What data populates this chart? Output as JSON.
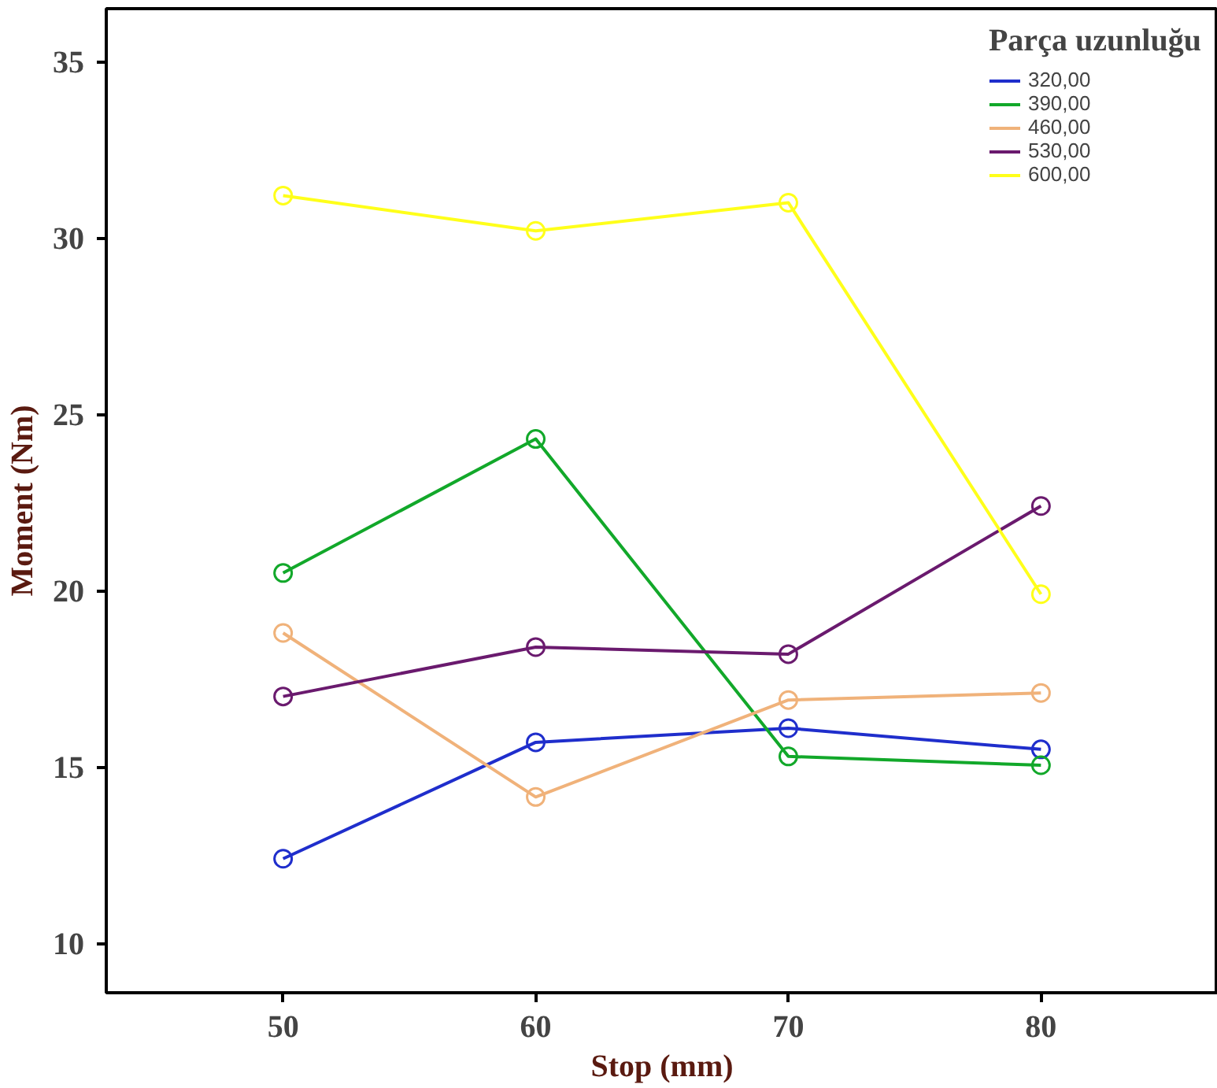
{
  "chart_data": {
    "type": "line",
    "xlabel": "Stop (mm)",
    "ylabel": "Moment (Nm)",
    "legend_title": "Parça uzunluğu",
    "x": [
      50,
      60,
      70,
      80
    ],
    "xlim": [
      43,
      87
    ],
    "xticks": [
      50,
      60,
      70,
      80
    ],
    "ylim": [
      8.6,
      36.5
    ],
    "yticks": [
      10,
      15,
      20,
      25,
      30,
      35
    ],
    "marker": "circle",
    "legend": "top right",
    "grid": false,
    "series": [
      {
        "name": "320,00",
        "color": "#1f2ecc",
        "values": [
          12.4,
          15.7,
          16.1,
          15.5
        ]
      },
      {
        "name": "390,00",
        "color": "#12a82a",
        "values": [
          20.5,
          24.3,
          15.3,
          15.05
        ]
      },
      {
        "name": "460,00",
        "color": "#f0b27a",
        "values": [
          18.8,
          14.15,
          16.9,
          17.1
        ]
      },
      {
        "name": "530,00",
        "color": "#6a1a6e",
        "values": [
          17.0,
          18.4,
          18.2,
          22.4
        ]
      },
      {
        "name": "600,00",
        "color": "#ffff1a",
        "values": [
          31.2,
          30.2,
          31.0,
          19.9
        ]
      }
    ]
  }
}
